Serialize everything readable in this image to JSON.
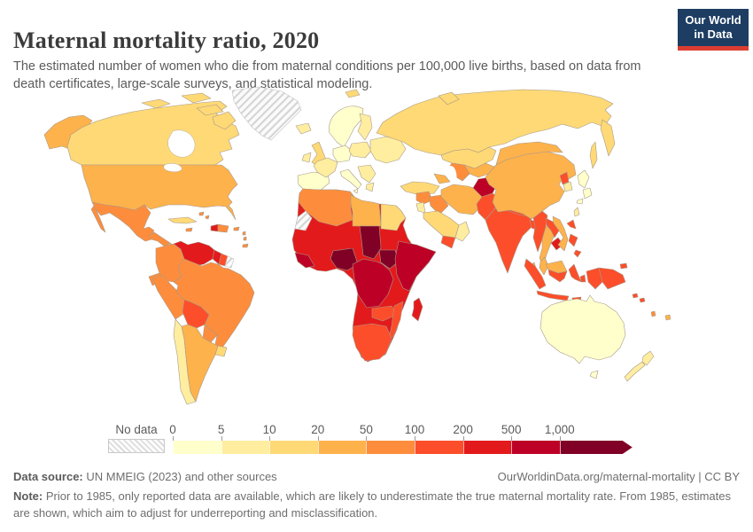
{
  "header": {
    "title": "Maternal mortality ratio, 2020",
    "subtitle": "The estimated number of women who die from maternal conditions per 100,000 live births, based on data from death certificates, large-scale surveys, and statistical modeling.",
    "logo": {
      "line1": "Our World",
      "line2": "in Data",
      "bg_color": "#1d3d63",
      "accent_color": "#dc3d33"
    }
  },
  "legend": {
    "no_data_label": "No data",
    "ticks": [
      "0",
      "5",
      "10",
      "20",
      "50",
      "100",
      "200",
      "500",
      "1,000"
    ],
    "colors": [
      "#FFFFCC",
      "#FFEDA0",
      "#FED976",
      "#FEB24C",
      "#FD8D3C",
      "#FC4E2A",
      "#E31A1C",
      "#BD0026",
      "#800026"
    ]
  },
  "footer": {
    "datasource_label": "Data source:",
    "datasource_text": " UN MMEIG (2023) and other sources",
    "link_text": "OurWorldinData.org/maternal-mortality | CC BY",
    "note_label": "Note:",
    "note_text": " Prior to 1985, only reported data are available, which are likely to underestimate the true maternal mortality rate. From 1985, estimates are shown, which aim to adjust for underreporting and misclassification."
  },
  "map": {
    "no_data_fill": "url(#hatch)",
    "border_color": "#a89a8a",
    "ocean_color": "#ffffff"
  },
  "chart_data": {
    "type": "choropleth-map",
    "title": "Maternal mortality ratio, 2020",
    "unit": "maternal deaths per 100,000 live births",
    "year": "2020",
    "bins": [
      {
        "label": "0-5",
        "color": "#FFFFCC"
      },
      {
        "label": "5-10",
        "color": "#FFEDA0"
      },
      {
        "label": "10-20",
        "color": "#FED976"
      },
      {
        "label": "20-50",
        "color": "#FEB24C"
      },
      {
        "label": "50-100",
        "color": "#FD8D3C"
      },
      {
        "label": "100-200",
        "color": "#FC4E2A"
      },
      {
        "label": "200-500",
        "color": "#E31A1C"
      },
      {
        "label": "500-1,000",
        "color": "#BD0026"
      },
      {
        "label": "1,000+",
        "color": "#800026"
      }
    ],
    "no_data_regions": [
      "Greenland",
      "Western Sahara",
      "French Guiana"
    ],
    "regions": {
      "alaska": {
        "bin": "20-50",
        "color": "#FEB24C"
      },
      "canada": {
        "bin": "10-20",
        "color": "#FED976"
      },
      "arctic_islands": {
        "bin": "10-20",
        "color": "#FED976"
      },
      "usa": {
        "bin": "20-50",
        "color": "#FEB24C"
      },
      "mexico": {
        "bin": "50-100",
        "color": "#FD8D3C"
      },
      "central_america": {
        "bin": "50-100",
        "color": "#FD8D3C"
      },
      "costa_rica": {
        "bin": "20-50",
        "color": "#FEB24C"
      },
      "cuba": {
        "bin": "10-20",
        "color": "#FED976"
      },
      "haiti": {
        "bin": "200-500",
        "color": "#E31A1C"
      },
      "dominican_republic": {
        "bin": "50-100",
        "color": "#FD8D3C"
      },
      "jamaica": {
        "bin": "50-100",
        "color": "#FD8D3C"
      },
      "bahamas": {
        "bin": "50-100",
        "color": "#FD8D3C"
      },
      "lesser_antilles": {
        "bin": "50-100",
        "color": "#FD8D3C"
      },
      "colombia": {
        "bin": "50-100",
        "color": "#FD8D3C"
      },
      "venezuela": {
        "bin": "200-500",
        "color": "#E31A1C"
      },
      "guyana": {
        "bin": "200-500",
        "color": "#E31A1C"
      },
      "suriname": {
        "bin": "100-200",
        "color": "#FC4E2A"
      },
      "ecuador": {
        "bin": "50-100",
        "color": "#FD8D3C"
      },
      "peru": {
        "bin": "50-100",
        "color": "#FD8D3C"
      },
      "brazil": {
        "bin": "50-100",
        "color": "#FD8D3C"
      },
      "bolivia": {
        "bin": "100-200",
        "color": "#FC4E2A"
      },
      "paraguay": {
        "bin": "50-100",
        "color": "#FD8D3C"
      },
      "chile": {
        "bin": "5-10",
        "color": "#FFEDA0"
      },
      "argentina": {
        "bin": "20-50",
        "color": "#FEB24C"
      },
      "uruguay": {
        "bin": "10-20",
        "color": "#FED976"
      },
      "iceland": {
        "bin": "5-10",
        "color": "#FFEDA0"
      },
      "uk": {
        "bin": "10-20",
        "color": "#FED976"
      },
      "ireland": {
        "bin": "5-10",
        "color": "#FFEDA0"
      },
      "scandinavia": {
        "bin": "0-5",
        "color": "#FFFFCC"
      },
      "finland": {
        "bin": "5-10",
        "color": "#FFEDA0"
      },
      "iberia": {
        "bin": "0-5",
        "color": "#FFFFCC"
      },
      "france": {
        "bin": "5-10",
        "color": "#FFEDA0"
      },
      "germany_benelux": {
        "bin": "0-5",
        "color": "#FFFFCC"
      },
      "central_europe": {
        "bin": "5-10",
        "color": "#FFEDA0"
      },
      "italy": {
        "bin": "0-5",
        "color": "#FFFFCC"
      },
      "balkans": {
        "bin": "5-10",
        "color": "#FFEDA0"
      },
      "greece": {
        "bin": "5-10",
        "color": "#FFEDA0"
      },
      "eastern_europe": {
        "bin": "5-10",
        "color": "#FFEDA0"
      },
      "russia": {
        "bin": "10-20",
        "color": "#FED976"
      },
      "svalbard": {
        "bin": "10-20",
        "color": "#FED976"
      },
      "novaya_zemlya": {
        "bin": "10-20",
        "color": "#FED976"
      },
      "kamchatka": {
        "bin": "10-20",
        "color": "#FED976"
      },
      "sakhalin": {
        "bin": "10-20",
        "color": "#FED976"
      },
      "turkey": {
        "bin": "10-20",
        "color": "#FED976"
      },
      "caucasus": {
        "bin": "20-50",
        "color": "#FEB24C"
      },
      "syria": {
        "bin": "50-100",
        "color": "#FD8D3C"
      },
      "israel_jordan": {
        "bin": "5-10",
        "color": "#FFEDA0"
      },
      "iraq": {
        "bin": "50-100",
        "color": "#FD8D3C"
      },
      "iran": {
        "bin": "20-50",
        "color": "#FEB24C"
      },
      "saudi_arabia": {
        "bin": "10-20",
        "color": "#FED976"
      },
      "yemen": {
        "bin": "100-200",
        "color": "#FC4E2A"
      },
      "oman_uae": {
        "bin": "5-10",
        "color": "#FFEDA0"
      },
      "kazakhstan": {
        "bin": "10-20",
        "color": "#FED976"
      },
      "uzbekistan_kyrgyzstan": {
        "bin": "20-50",
        "color": "#FEB24C"
      },
      "turkmenistan": {
        "bin": "50-100",
        "color": "#FD8D3C"
      },
      "afghanistan": {
        "bin": "500-1,000",
        "color": "#BD0026"
      },
      "pakistan": {
        "bin": "100-200",
        "color": "#FC4E2A"
      },
      "india": {
        "bin": "100-200",
        "color": "#FC4E2A"
      },
      "nepal": {
        "bin": "100-200",
        "color": "#FC4E2A"
      },
      "bangladesh": {
        "bin": "100-200",
        "color": "#FC4E2A"
      },
      "sri_lanka": {
        "bin": "20-50",
        "color": "#FEB24C"
      },
      "china": {
        "bin": "20-50",
        "color": "#FEB24C"
      },
      "mongolia": {
        "bin": "20-50",
        "color": "#FEB24C"
      },
      "north_korea": {
        "bin": "100-200",
        "color": "#FC4E2A"
      },
      "south_korea": {
        "bin": "5-10",
        "color": "#FFEDA0"
      },
      "japan": {
        "bin": "0-5",
        "color": "#FFFFCC"
      },
      "taiwan": {
        "bin": "5-10",
        "color": "#FFEDA0"
      },
      "myanmar": {
        "bin": "100-200",
        "color": "#FC4E2A"
      },
      "thailand": {
        "bin": "20-50",
        "color": "#FEB24C"
      },
      "laos": {
        "bin": "100-200",
        "color": "#FC4E2A"
      },
      "cambodia": {
        "bin": "200-500",
        "color": "#E31A1C"
      },
      "vietnam": {
        "bin": "20-50",
        "color": "#FEB24C"
      },
      "malaysia": {
        "bin": "20-50",
        "color": "#FEB24C"
      },
      "malaysia_borneo": {
        "bin": "20-50",
        "color": "#FEB24C"
      },
      "indonesia": {
        "bin": "100-200",
        "color": "#FC4E2A"
      },
      "philippines": {
        "bin": "100-200",
        "color": "#FC4E2A"
      },
      "papua_new_guinea": {
        "bin": "100-200",
        "color": "#FC4E2A"
      },
      "solomon_islands": {
        "bin": "100-200",
        "color": "#FC4E2A"
      },
      "vanuatu": {
        "bin": "50-100",
        "color": "#FD8D3C"
      },
      "fiji": {
        "bin": "20-50",
        "color": "#FEB24C"
      },
      "australia": {
        "bin": "0-5",
        "color": "#FFFFCC"
      },
      "new_zealand": {
        "bin": "5-10",
        "color": "#FFEDA0"
      },
      "north_africa_west": {
        "bin": "50-100",
        "color": "#FD8D3C"
      },
      "libya": {
        "bin": "20-50",
        "color": "#FEB24C"
      },
      "egypt": {
        "bin": "10-20",
        "color": "#FED976"
      },
      "africa_base": {
        "bin": "200-500",
        "color": "#E31A1C"
      },
      "chad": {
        "bin": "1,000+",
        "color": "#800026"
      },
      "nigeria": {
        "bin": "1,000+",
        "color": "#800026"
      },
      "south_sudan": {
        "bin": "1,000+",
        "color": "#800026"
      },
      "guinea_region": {
        "bin": "500-1,000",
        "color": "#BD0026"
      },
      "central_africa": {
        "bin": "500-1,000",
        "color": "#BD0026"
      },
      "horn_of_africa": {
        "bin": "500-1,000",
        "color": "#BD0026"
      },
      "zambia": {
        "bin": "100-200",
        "color": "#FC4E2A"
      },
      "mozambique": {
        "bin": "100-200",
        "color": "#FC4E2A"
      },
      "southern_africa": {
        "bin": "100-200",
        "color": "#FC4E2A"
      },
      "madagascar": {
        "bin": "200-500",
        "color": "#E31A1C"
      }
    }
  }
}
